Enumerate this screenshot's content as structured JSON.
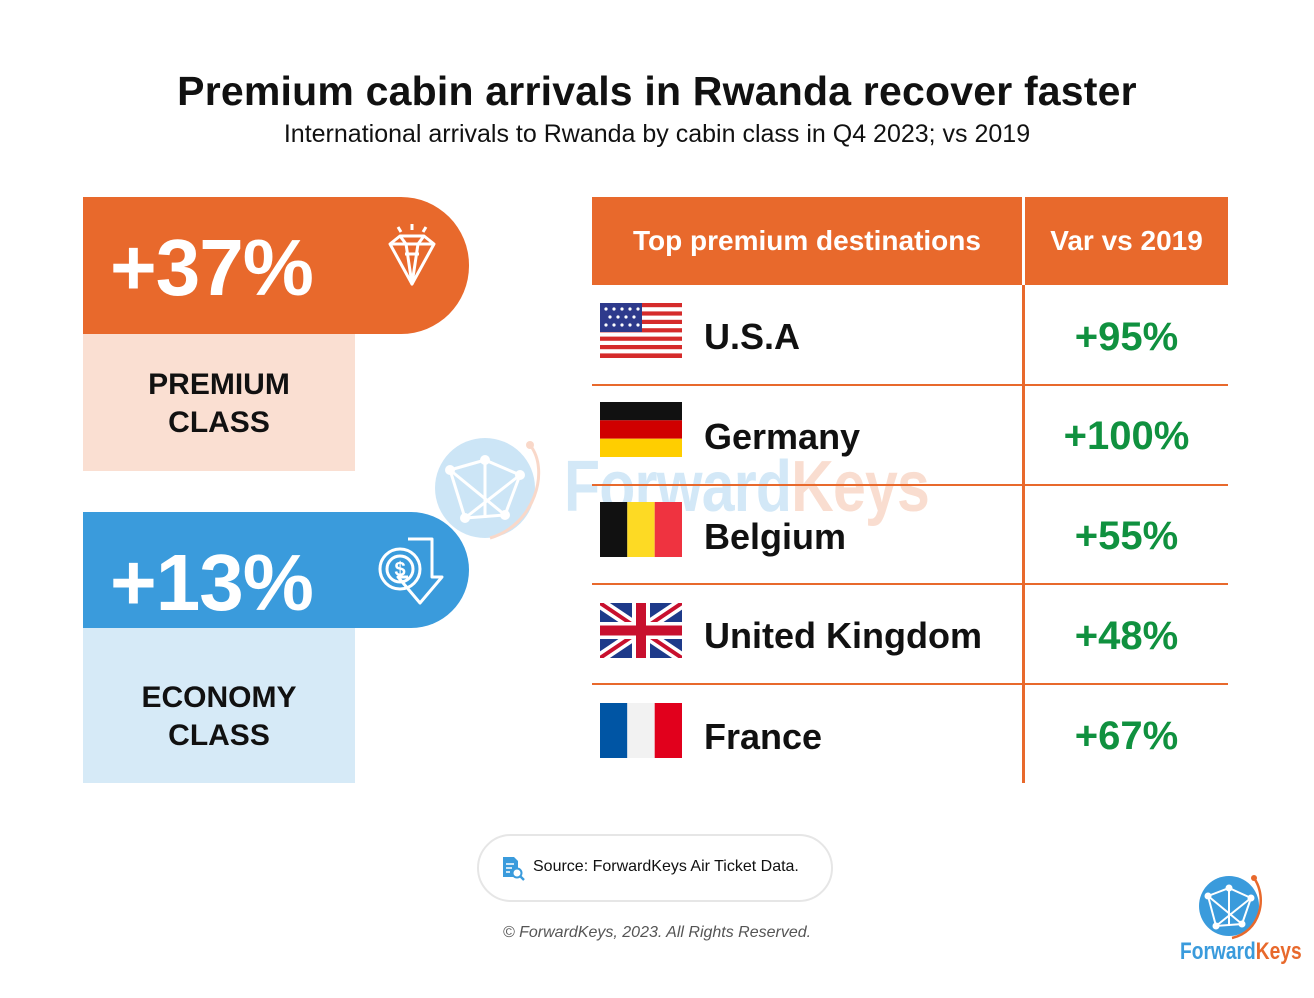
{
  "header": {
    "title": "Premium cabin arrivals in Rwanda recover faster",
    "subtitle": "International arrivals to Rwanda by cabin class in Q4 2023; vs 2019"
  },
  "kpis": {
    "premium": {
      "value": "+37%",
      "label_line1": "PREMIUM",
      "label_line2": "CLASS",
      "icon": "diamond-icon",
      "color": "#E8692C",
      "light_color": "#FADFD2"
    },
    "economy": {
      "value": "+13%",
      "label_line1": "ECONOMY",
      "label_line2": "CLASS",
      "icon": "dollar-arrow-down-icon",
      "color": "#3A9BDC",
      "light_color": "#D6EAF7"
    }
  },
  "chart_data": {
    "type": "table",
    "columns": [
      "Top premium destinations",
      "Var vs 2019"
    ],
    "rows": [
      {
        "country": "U.S.A",
        "var": "+95%",
        "value": 95,
        "flag": "usa-flag"
      },
      {
        "country": "Germany",
        "var": "+100%",
        "value": 100,
        "flag": "germany-flag"
      },
      {
        "country": "Belgium",
        "var": "+55%",
        "value": 55,
        "flag": "belgium-flag"
      },
      {
        "country": "United Kingdom",
        "var": "+48%",
        "value": 48,
        "flag": "uk-flag"
      },
      {
        "country": "France",
        "var": "+67%",
        "value": 67,
        "flag": "france-flag"
      }
    ],
    "colors": {
      "header": "#E8692C",
      "positive": "#10913F"
    }
  },
  "footer": {
    "source": "Source: ForwardKeys Air Ticket Data.",
    "copyright": "© ForwardKeys, 2023. All Rights Reserved.",
    "logo_part1": "Forward",
    "logo_part2": "Keys",
    "logo_color1": "#3A9BDC",
    "logo_color2": "#E8692C"
  },
  "watermark": {
    "part1": "Forward",
    "part2": "Keys"
  }
}
